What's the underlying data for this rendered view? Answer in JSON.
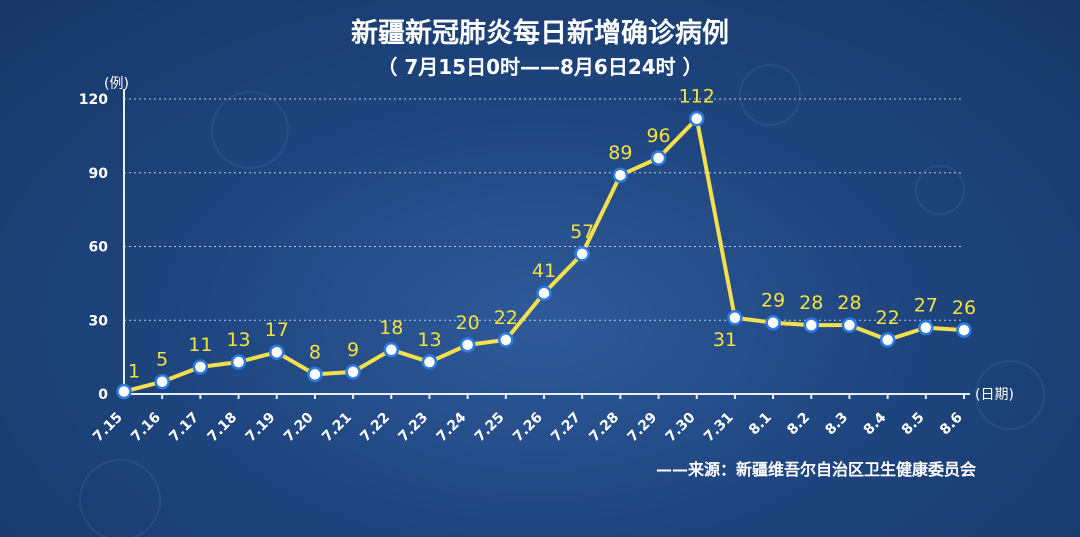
{
  "chart_data": {
    "type": "line",
    "title": "新疆新冠肺炎每日新增确诊病例",
    "subtitle": "（ 7月15日0时——8月6日24时 ）",
    "ylabel": "(例)",
    "xlabel": "(日期)",
    "ylim": [
      0,
      120
    ],
    "yticks": [
      0,
      30,
      60,
      90,
      120
    ],
    "grid": true,
    "categories": [
      "7.15",
      "7.16",
      "7.17",
      "7.18",
      "7.19",
      "7.20",
      "7.21",
      "7.22",
      "7.23",
      "7.24",
      "7.25",
      "7.26",
      "7.27",
      "7.28",
      "7.29",
      "7.30",
      "7.31",
      "8.1",
      "8.2",
      "8.3",
      "8.4",
      "8.5",
      "8.6"
    ],
    "series": [
      {
        "values": [
          1,
          5,
          11,
          13,
          17,
          8,
          9,
          18,
          13,
          20,
          22,
          41,
          57,
          89,
          96,
          112,
          31,
          29,
          28,
          28,
          22,
          27,
          26
        ]
      }
    ],
    "source": "——来源：新疆维吾尔自治区卫生健康委员会",
    "colors": {
      "line": "#f4e04d",
      "label": "#f7e23a",
      "point_stroke": "#2d7be0"
    }
  }
}
